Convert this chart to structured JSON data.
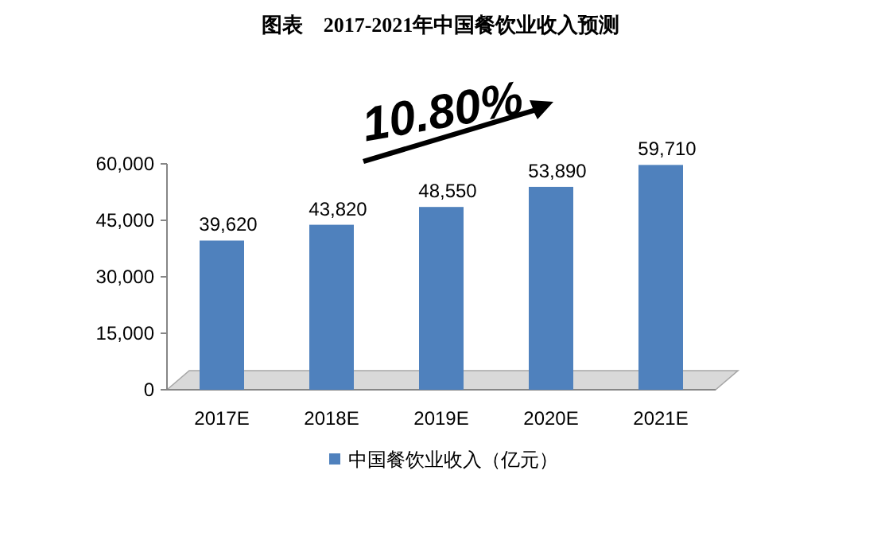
{
  "chart_data": {
    "type": "bar",
    "title": "图表　2017-2021年中国餐饮业收入预测",
    "categories": [
      "2017E",
      "2018E",
      "2019E",
      "2020E",
      "2021E"
    ],
    "series": [
      {
        "name": "中国餐饮业收入（亿元）",
        "color": "#4f81bd",
        "values": [
          39620,
          43820,
          48550,
          53890,
          59710
        ],
        "value_labels": [
          "39,620",
          "43,820",
          "48,550",
          "53,890",
          "59,710"
        ]
      }
    ],
    "ylim": [
      0,
      60000
    ],
    "yticks": [
      {
        "value": 0,
        "label": "0"
      },
      {
        "value": 15000,
        "label": "15,000"
      },
      {
        "value": 30000,
        "label": "30,000"
      },
      {
        "value": 45000,
        "label": "45,000"
      },
      {
        "value": 60000,
        "label": "60,000"
      }
    ],
    "legend": "bottom",
    "grid": false,
    "annotations": [
      "10.80%"
    ]
  }
}
